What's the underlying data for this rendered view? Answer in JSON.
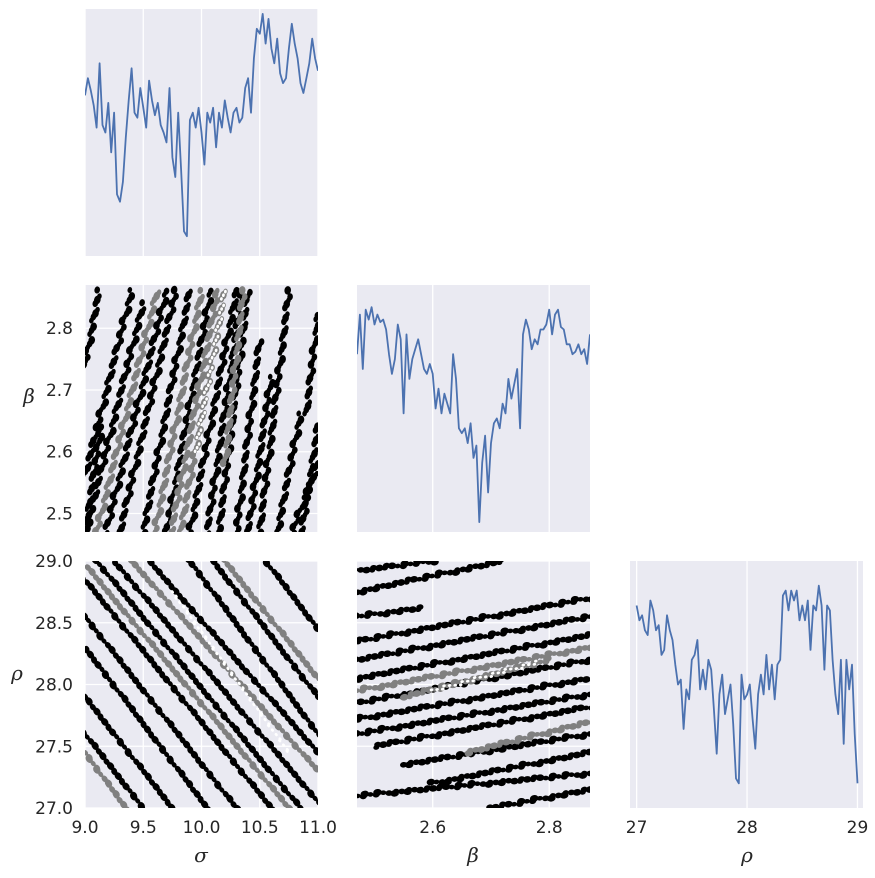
{
  "colors": {
    "panel_bg": "#eaeaf2",
    "grid": "#ffffff",
    "line": "#4c72b0",
    "scatter_dark": "#000000",
    "scatter_mid": "#808080",
    "scatter_light": "#ffffff"
  },
  "chart_data": [
    {
      "panel": "sigma-marginal",
      "type": "line",
      "xlabel": "",
      "ylabel": "",
      "xlim": [
        9.0,
        11.0
      ],
      "ylim": [
        0,
        100
      ],
      "x": [
        9.0,
        9.025,
        9.05,
        9.075,
        9.1,
        9.125,
        9.15,
        9.175,
        9.2,
        9.225,
        9.25,
        9.275,
        9.3,
        9.325,
        9.35,
        9.375,
        9.4,
        9.425,
        9.45,
        9.475,
        9.5,
        9.525,
        9.55,
        9.575,
        9.6,
        9.625,
        9.65,
        9.675,
        9.7,
        9.725,
        9.75,
        9.775,
        9.8,
        9.825,
        9.85,
        9.875,
        9.9,
        9.925,
        9.95,
        9.975,
        10.0,
        10.025,
        10.05,
        10.075,
        10.1,
        10.125,
        10.15,
        10.175,
        10.2,
        10.225,
        10.25,
        10.275,
        10.3,
        10.325,
        10.35,
        10.375,
        10.4,
        10.425,
        10.45,
        10.475,
        10.5,
        10.525,
        10.55,
        10.575,
        10.6,
        10.625,
        10.65,
        10.675,
        10.7,
        10.725,
        10.75,
        10.775,
        10.8,
        10.825,
        10.85,
        10.875,
        10.9,
        10.925,
        10.95,
        10.975,
        11.0
      ],
      "y": [
        65,
        72,
        67,
        61,
        52,
        78,
        53,
        50,
        62,
        42,
        58,
        25,
        22,
        30,
        48,
        63,
        76,
        58,
        56,
        68,
        60,
        52,
        71,
        63,
        57,
        62,
        53,
        50,
        46,
        68,
        40,
        32,
        58,
        35,
        10,
        8,
        55,
        58,
        52,
        60,
        50,
        37,
        58,
        54,
        60,
        44,
        58,
        52,
        63,
        56,
        50,
        58,
        60,
        54,
        56,
        68,
        72,
        58,
        80,
        92,
        90,
        98,
        86,
        96,
        84,
        78,
        88,
        74,
        70,
        72,
        84,
        94,
        86,
        80,
        70,
        66,
        72,
        78,
        88,
        80,
        75
      ]
    },
    {
      "panel": "beta-marginal",
      "type": "line",
      "xlabel": "",
      "ylabel": "",
      "xlim": [
        2.47,
        2.87
      ],
      "ylim": [
        0,
        100
      ],
      "x": [
        2.47,
        2.475,
        2.48,
        2.485,
        2.49,
        2.495,
        2.5,
        2.505,
        2.51,
        2.515,
        2.52,
        2.525,
        2.53,
        2.535,
        2.54,
        2.545,
        2.55,
        2.555,
        2.56,
        2.565,
        2.57,
        2.575,
        2.58,
        2.585,
        2.59,
        2.595,
        2.6,
        2.605,
        2.61,
        2.615,
        2.62,
        2.625,
        2.63,
        2.635,
        2.64,
        2.645,
        2.65,
        2.655,
        2.66,
        2.665,
        2.67,
        2.675,
        2.68,
        2.685,
        2.69,
        2.695,
        2.7,
        2.705,
        2.71,
        2.715,
        2.72,
        2.725,
        2.73,
        2.735,
        2.74,
        2.745,
        2.75,
        2.755,
        2.76,
        2.765,
        2.77,
        2.775,
        2.78,
        2.785,
        2.79,
        2.795,
        2.8,
        2.805,
        2.81,
        2.815,
        2.82,
        2.825,
        2.83,
        2.835,
        2.84,
        2.845,
        2.85,
        2.855,
        2.86,
        2.865,
        2.87
      ],
      "y": [
        72,
        88,
        66,
        90,
        86,
        91,
        84,
        88,
        85,
        86,
        82,
        72,
        64,
        70,
        84,
        78,
        48,
        80,
        62,
        70,
        74,
        78,
        72,
        66,
        64,
        68,
        64,
        50,
        58,
        48,
        56,
        52,
        48,
        72,
        62,
        42,
        40,
        42,
        36,
        44,
        30,
        35,
        4,
        28,
        39,
        16,
        36,
        44,
        46,
        42,
        52,
        48,
        62,
        54,
        60,
        66,
        42,
        80,
        86,
        82,
        74,
        78,
        76,
        82,
        82,
        84,
        90,
        80,
        88,
        90,
        83,
        82,
        76,
        76,
        72,
        73,
        76,
        72,
        74,
        68,
        80
      ]
    },
    {
      "panel": "rho-marginal",
      "type": "line",
      "xlabel": "",
      "ylabel": "",
      "xlim": [
        26.94,
        29.05
      ],
      "ylim": [
        0,
        100
      ],
      "x": [
        27.0,
        27.025,
        27.05,
        27.075,
        27.1,
        27.125,
        27.15,
        27.175,
        27.2,
        27.225,
        27.25,
        27.275,
        27.3,
        27.325,
        27.35,
        27.375,
        27.4,
        27.425,
        27.45,
        27.475,
        27.5,
        27.525,
        27.55,
        27.575,
        27.6,
        27.625,
        27.65,
        27.675,
        27.7,
        27.725,
        27.75,
        27.775,
        27.8,
        27.825,
        27.85,
        27.875,
        27.9,
        27.925,
        27.95,
        27.975,
        28.0,
        28.025,
        28.05,
        28.075,
        28.1,
        28.125,
        28.15,
        28.175,
        28.2,
        28.225,
        28.25,
        28.275,
        28.3,
        28.325,
        28.35,
        28.375,
        28.4,
        28.425,
        28.45,
        28.475,
        28.5,
        28.525,
        28.55,
        28.575,
        28.6,
        28.625,
        28.65,
        28.675,
        28.7,
        28.725,
        28.75,
        28.775,
        28.8,
        28.825,
        28.85,
        28.875,
        28.9,
        28.925,
        28.95,
        28.975,
        29.0
      ],
      "y": [
        82,
        76,
        78,
        72,
        70,
        84,
        80,
        72,
        74,
        62,
        64,
        78,
        72,
        68,
        58,
        50,
        52,
        32,
        48,
        44,
        60,
        62,
        68,
        48,
        56,
        48,
        60,
        56,
        40,
        22,
        46,
        54,
        38,
        44,
        50,
        34,
        12,
        10,
        54,
        44,
        46,
        50,
        36,
        24,
        46,
        54,
        46,
        62,
        48,
        58,
        44,
        58,
        60,
        86,
        88,
        80,
        88,
        84,
        88,
        76,
        82,
        76,
        84,
        64,
        82,
        80,
        90,
        82,
        56,
        82,
        80,
        60,
        46,
        38,
        60,
        26,
        60,
        48,
        58,
        30,
        10
      ]
    },
    {
      "panel": "sigma-beta-joint",
      "type": "scatter",
      "xlabel": "",
      "ylabel": "β",
      "xlim": [
        9.0,
        11.0
      ],
      "ylim": [
        2.47,
        2.87
      ],
      "bands": [
        {
          "x1": 9.0,
          "y1": 2.56,
          "x2": 9.4,
          "y2": 2.86,
          "tone": "dark"
        },
        {
          "x1": 9.02,
          "y1": 2.48,
          "x2": 9.5,
          "y2": 2.84,
          "tone": "dark"
        },
        {
          "x1": 9.1,
          "y1": 2.47,
          "x2": 9.62,
          "y2": 2.86,
          "tone": "mid"
        },
        {
          "x1": 9.18,
          "y1": 2.47,
          "x2": 9.7,
          "y2": 2.86,
          "tone": "dark"
        },
        {
          "x1": 9.3,
          "y1": 2.47,
          "x2": 9.78,
          "y2": 2.86,
          "tone": "dark"
        },
        {
          "x1": 9.5,
          "y1": 2.47,
          "x2": 9.9,
          "y2": 2.86,
          "tone": "dark"
        },
        {
          "x1": 9.6,
          "y1": 2.47,
          "x2": 10.0,
          "y2": 2.86,
          "tone": "mid"
        },
        {
          "x1": 9.7,
          "y1": 2.47,
          "x2": 10.08,
          "y2": 2.86,
          "tone": "dark"
        },
        {
          "x1": 9.74,
          "y1": 2.47,
          "x2": 10.14,
          "y2": 2.86,
          "tone": "mid"
        },
        {
          "x1": 9.82,
          "y1": 2.47,
          "x2": 10.2,
          "y2": 2.86,
          "tone": "mid"
        },
        {
          "x1": 9.9,
          "y1": 2.47,
          "x2": 10.3,
          "y2": 2.86,
          "tone": "dark"
        },
        {
          "x1": 9.95,
          "y1": 2.6,
          "x2": 10.2,
          "y2": 2.86,
          "tone": "light"
        },
        {
          "x1": 10.05,
          "y1": 2.47,
          "x2": 10.35,
          "y2": 2.86,
          "tone": "dark"
        },
        {
          "x1": 10.15,
          "y1": 2.47,
          "x2": 10.4,
          "y2": 2.86,
          "tone": "dark"
        },
        {
          "x1": 10.2,
          "y1": 2.58,
          "x2": 10.36,
          "y2": 2.86,
          "tone": "mid"
        },
        {
          "x1": 10.3,
          "y1": 2.47,
          "x2": 10.5,
          "y2": 2.78,
          "tone": "dark"
        },
        {
          "x1": 10.4,
          "y1": 2.47,
          "x2": 10.6,
          "y2": 2.72,
          "tone": "dark"
        },
        {
          "x1": 10.5,
          "y1": 2.47,
          "x2": 10.75,
          "y2": 2.86,
          "tone": "dark"
        },
        {
          "x1": 10.65,
          "y1": 2.47,
          "x2": 10.85,
          "y2": 2.66,
          "tone": "dark"
        },
        {
          "x1": 10.78,
          "y1": 2.47,
          "x2": 11.0,
          "y2": 2.58,
          "tone": "dark"
        },
        {
          "x1": 10.86,
          "y1": 2.47,
          "x2": 11.0,
          "y2": 2.64,
          "tone": "dark"
        },
        {
          "x1": 10.9,
          "y1": 2.66,
          "x2": 11.0,
          "y2": 2.82,
          "tone": "dark"
        },
        {
          "x1": 9.0,
          "y1": 2.47,
          "x2": 9.14,
          "y2": 2.64,
          "tone": "dark"
        },
        {
          "x1": 9.0,
          "y1": 2.74,
          "x2": 9.12,
          "y2": 2.86,
          "tone": "dark"
        }
      ]
    },
    {
      "panel": "sigma-rho-joint",
      "type": "scatter",
      "xlabel": "σ",
      "ylabel": "ρ",
      "xlim": [
        9.0,
        11.0
      ],
      "ylim": [
        27.0,
        29.0
      ],
      "bands": [
        {
          "x1": 9.0,
          "y1": 28.85,
          "x2": 10.6,
          "y2": 27.0,
          "tone": "dark"
        },
        {
          "x1": 9.02,
          "y1": 28.95,
          "x2": 10.75,
          "y2": 27.0,
          "tone": "mid"
        },
        {
          "x1": 9.1,
          "y1": 29.0,
          "x2": 10.85,
          "y2": 27.0,
          "tone": "dark"
        },
        {
          "x1": 9.25,
          "y1": 29.0,
          "x2": 11.0,
          "y2": 27.05,
          "tone": "dark"
        },
        {
          "x1": 9.4,
          "y1": 29.0,
          "x2": 11.0,
          "y2": 27.3,
          "tone": "mid"
        },
        {
          "x1": 9.55,
          "y1": 29.0,
          "x2": 11.0,
          "y2": 27.45,
          "tone": "dark"
        },
        {
          "x1": 9.75,
          "y1": 28.75,
          "x2": 10.75,
          "y2": 27.45,
          "tone": "light"
        },
        {
          "x1": 9.9,
          "y1": 29.0,
          "x2": 11.0,
          "y2": 27.6,
          "tone": "dark"
        },
        {
          "x1": 10.1,
          "y1": 29.0,
          "x2": 11.0,
          "y2": 27.9,
          "tone": "dark"
        },
        {
          "x1": 10.2,
          "y1": 29.0,
          "x2": 11.0,
          "y2": 28.05,
          "tone": "mid"
        },
        {
          "x1": 10.55,
          "y1": 29.0,
          "x2": 11.0,
          "y2": 28.45,
          "tone": "dark"
        },
        {
          "x1": 9.0,
          "y1": 28.55,
          "x2": 10.3,
          "y2": 27.0,
          "tone": "dark"
        },
        {
          "x1": 9.0,
          "y1": 28.3,
          "x2": 10.05,
          "y2": 27.0,
          "tone": "dark"
        },
        {
          "x1": 9.0,
          "y1": 27.9,
          "x2": 9.75,
          "y2": 27.0,
          "tone": "dark"
        },
        {
          "x1": 9.0,
          "y1": 27.6,
          "x2": 9.5,
          "y2": 27.0,
          "tone": "dark"
        },
        {
          "x1": 9.0,
          "y1": 27.45,
          "x2": 9.35,
          "y2": 27.0,
          "tone": "mid"
        }
      ]
    },
    {
      "panel": "beta-rho-joint",
      "type": "scatter",
      "xlabel": "β",
      "ylabel": "",
      "xlim": [
        2.47,
        2.87
      ],
      "ylim": [
        27.0,
        29.0
      ],
      "bands": [
        {
          "x1": 2.47,
          "y1": 28.92,
          "x2": 2.6,
          "y2": 29.0,
          "tone": "dark"
        },
        {
          "x1": 2.47,
          "y1": 28.75,
          "x2": 2.72,
          "y2": 29.0,
          "tone": "dark"
        },
        {
          "x1": 2.47,
          "y1": 28.55,
          "x2": 2.58,
          "y2": 28.62,
          "tone": "dark"
        },
        {
          "x1": 2.47,
          "y1": 28.35,
          "x2": 2.87,
          "y2": 28.7,
          "tone": "dark"
        },
        {
          "x1": 2.47,
          "y1": 28.2,
          "x2": 2.87,
          "y2": 28.55,
          "tone": "dark"
        },
        {
          "x1": 2.47,
          "y1": 28.05,
          "x2": 2.87,
          "y2": 28.4,
          "tone": "dark"
        },
        {
          "x1": 2.47,
          "y1": 27.95,
          "x2": 2.87,
          "y2": 28.3,
          "tone": "mid"
        },
        {
          "x1": 2.47,
          "y1": 27.85,
          "x2": 2.87,
          "y2": 28.2,
          "tone": "dark"
        },
        {
          "x1": 2.55,
          "y1": 27.9,
          "x2": 2.8,
          "y2": 28.2,
          "tone": "mid"
        },
        {
          "x1": 2.6,
          "y1": 27.95,
          "x2": 2.78,
          "y2": 28.18,
          "tone": "light"
        },
        {
          "x1": 2.47,
          "y1": 27.72,
          "x2": 2.87,
          "y2": 28.05,
          "tone": "dark"
        },
        {
          "x1": 2.47,
          "y1": 27.6,
          "x2": 2.87,
          "y2": 27.92,
          "tone": "dark"
        },
        {
          "x1": 2.5,
          "y1": 27.5,
          "x2": 2.87,
          "y2": 27.82,
          "tone": "dark"
        },
        {
          "x1": 2.55,
          "y1": 27.35,
          "x2": 2.87,
          "y2": 27.6,
          "tone": "dark"
        },
        {
          "x1": 2.6,
          "y1": 27.2,
          "x2": 2.87,
          "y2": 27.45,
          "tone": "dark"
        },
        {
          "x1": 2.47,
          "y1": 27.1,
          "x2": 2.87,
          "y2": 27.28,
          "tone": "dark"
        },
        {
          "x1": 2.7,
          "y1": 27.0,
          "x2": 2.87,
          "y2": 27.15,
          "tone": "dark"
        },
        {
          "x1": 2.66,
          "y1": 27.45,
          "x2": 2.87,
          "y2": 27.7,
          "tone": "mid"
        }
      ]
    },
    {
      "panel": "axes",
      "type": "table",
      "sigma_ticks": [
        "9.0",
        "9.5",
        "10.0",
        "10.5",
        "11.0"
      ],
      "beta_x_ticks": [
        "2.6",
        "2.8"
      ],
      "beta_y_ticks": [
        "2.5",
        "2.6",
        "2.7",
        "2.8"
      ],
      "rho_x_ticks": [
        "27",
        "28",
        "29"
      ],
      "rho_y_ticks": [
        "27.0",
        "27.5",
        "28.0",
        "28.5",
        "29.0"
      ],
      "labels": {
        "sigma": "σ",
        "beta": "β",
        "rho": "ρ"
      }
    }
  ]
}
